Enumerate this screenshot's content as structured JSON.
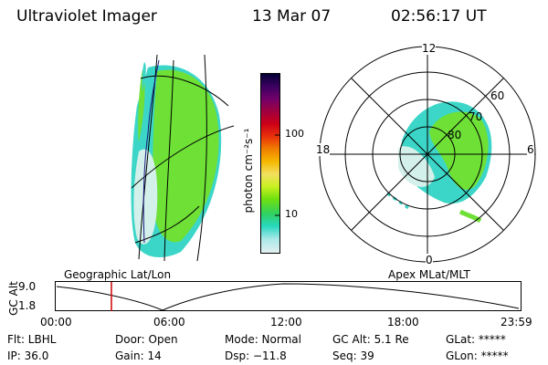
{
  "header": {
    "instrument": "Ultraviolet Imager",
    "date": "13 Mar 07",
    "time": "02:56:17 UT"
  },
  "colorbar": {
    "unit_label": "photon cm⁻²s⁻¹",
    "ticks": [
      "100",
      "10"
    ],
    "colors": [
      "#000033",
      "#3a0060",
      "#70006a",
      "#a00040",
      "#cc0018",
      "#e8300a",
      "#f07e00",
      "#f4b800",
      "#f2e060",
      "#c8f020",
      "#6ee010",
      "#30d060",
      "#28d8c0",
      "#a8e8e8",
      "#e6f0f0"
    ]
  },
  "geo_panel": {
    "label": "Geographic Lat/Lon",
    "aurora_colors": {
      "main": "#6ee036",
      "edge": "#3cd6c8",
      "inner": "#d4f0ea"
    }
  },
  "polar_panel": {
    "label": "Apex MLat/MLT",
    "hours": {
      "top": "12",
      "bottom": "0",
      "left": "18",
      "right": "6"
    },
    "lat_labels": [
      "60",
      "70",
      "80"
    ]
  },
  "altitude_plot": {
    "ylabel": "GC Alt",
    "yticks": [
      "9.0",
      "1.8"
    ],
    "xticks": [
      "00:00",
      "06:00",
      "12:00",
      "18:00",
      "23:59"
    ],
    "marker_color": "#cc0000"
  },
  "info": {
    "row1": [
      {
        "name": "flt",
        "text": "Flt: LBHL"
      },
      {
        "name": "door",
        "text": "Door: Open"
      },
      {
        "name": "mode",
        "text": "Mode: Normal"
      },
      {
        "name": "gcalt",
        "text": "GC Alt: 5.1 Re"
      },
      {
        "name": "glat",
        "text": "GLat: *****"
      }
    ],
    "row2": [
      {
        "name": "ip",
        "text": "IP: 36.0"
      },
      {
        "name": "gain",
        "text": "Gain: 14"
      },
      {
        "name": "dsp",
        "text": "Dsp:  −11.8"
      },
      {
        "name": "seq",
        "text": "Seq: 39"
      },
      {
        "name": "glon",
        "text": "GLon: *****"
      }
    ]
  }
}
